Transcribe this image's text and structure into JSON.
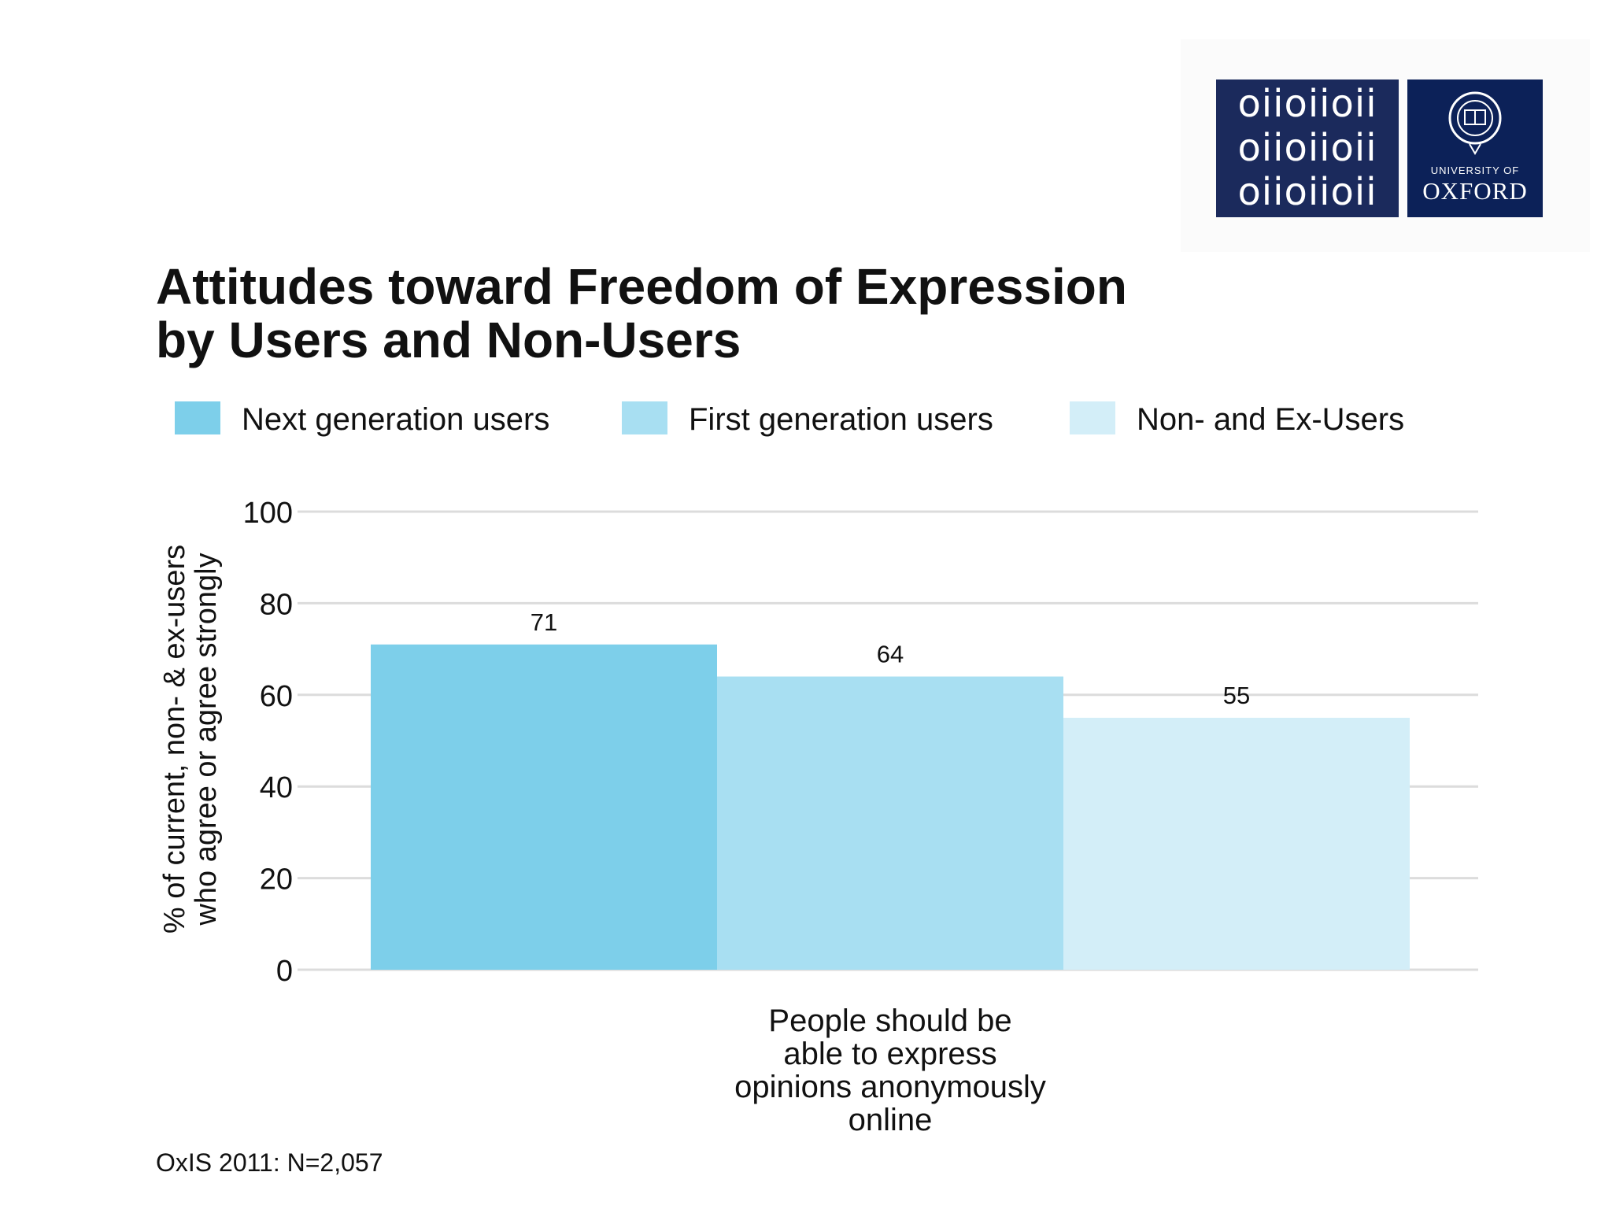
{
  "logo": {
    "binary_lines": [
      "oiioiioii",
      "oiioiioii",
      "oiioiioii"
    ],
    "university_of": "UNIVERSITY OF",
    "oxford": "OXFORD",
    "colors": {
      "binary_bg": "#1b2a5c",
      "oxford_bg": "#0c2158"
    }
  },
  "chart_data": {
    "type": "bar",
    "title": "Attitudes toward Freedom of Expression by Users and Non-Users",
    "title_lines": [
      "Attitudes toward Freedom of Expression",
      "by Users and Non-Users"
    ],
    "categories": [
      "People should be able to express opinions anonymously online"
    ],
    "category_label_lines": [
      "People should be",
      "able to express",
      "opinions anonymously",
      "online"
    ],
    "series": [
      {
        "name": "Next generation users",
        "values": [
          71
        ],
        "color": "#7dcfea"
      },
      {
        "name": "First generation users",
        "values": [
          64
        ],
        "color": "#a8dff2"
      },
      {
        "name": "Non- and Ex-Users",
        "values": [
          55
        ],
        "color": "#d3eef8"
      }
    ],
    "ylabel_lines": [
      "% of current, non- & ex-users",
      "who agree or agree strongly"
    ],
    "ylabel": "% of current, non- & ex-users who agree or agree strongly",
    "xlabel": "",
    "ylim": [
      0,
      100
    ],
    "yticks": [
      0,
      20,
      40,
      60,
      80,
      100
    ],
    "grid": true,
    "legend_position": "top",
    "note": "OxIS 2011: N=2,057"
  }
}
